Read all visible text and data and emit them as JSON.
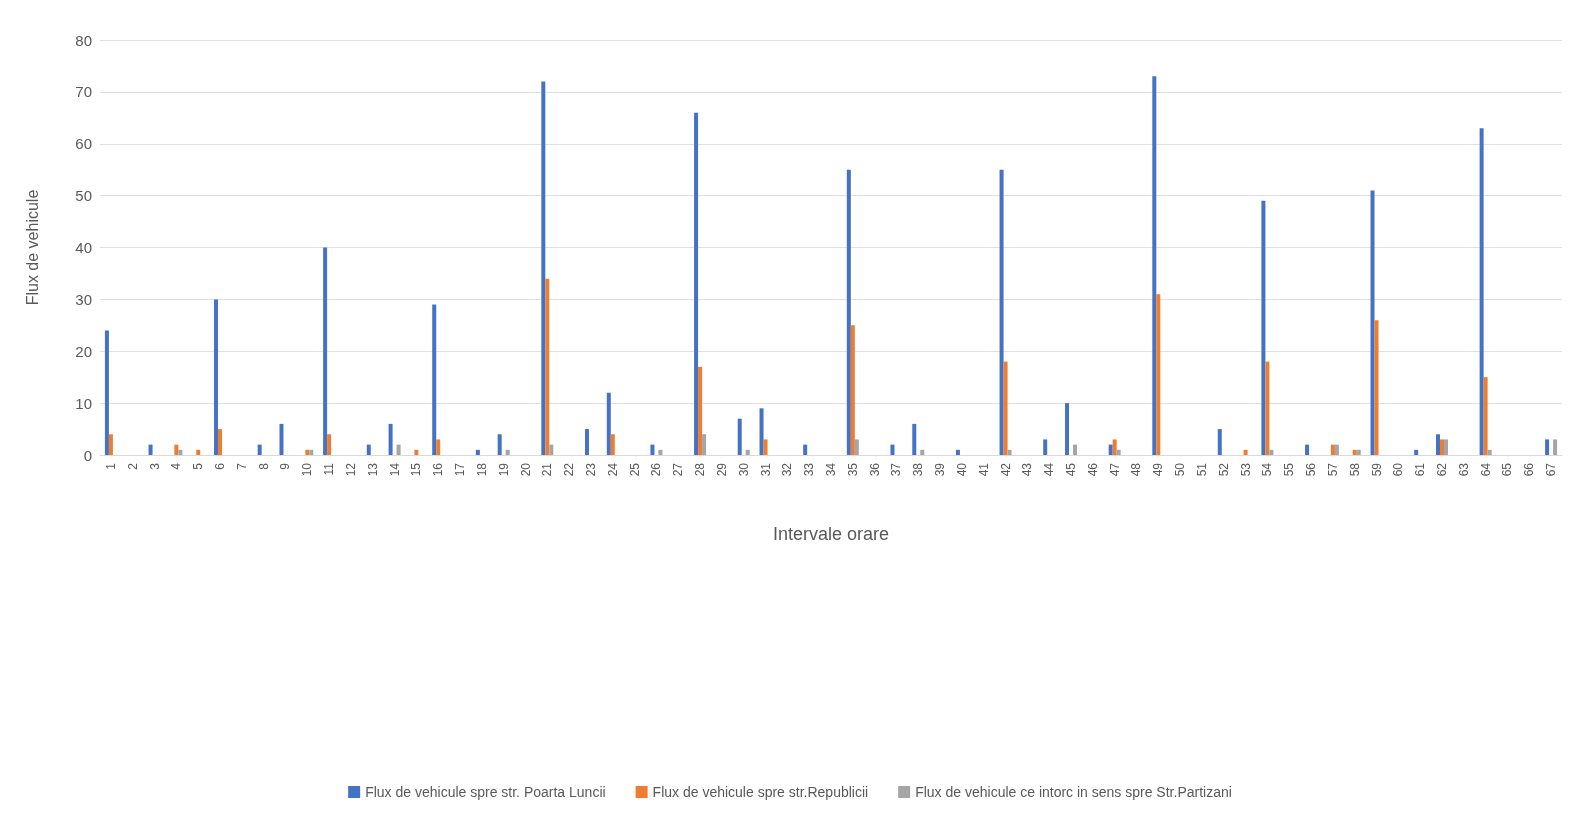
{
  "chart_data": {
    "type": "bar",
    "xlabel": "Intervale orare",
    "ylabel": "Flux de vehicule",
    "categories": [
      "1",
      "2",
      "3",
      "4",
      "5",
      "6",
      "7",
      "8",
      "9",
      "10",
      "11",
      "12",
      "13",
      "14",
      "15",
      "16",
      "17",
      "18",
      "19",
      "20",
      "21",
      "22",
      "23",
      "24",
      "25",
      "26",
      "27",
      "28",
      "29",
      "30",
      "31",
      "32",
      "33",
      "34",
      "35",
      "36",
      "37",
      "38",
      "39",
      "40",
      "41",
      "42",
      "43",
      "44",
      "45",
      "46",
      "47",
      "48",
      "49",
      "50",
      "51",
      "52",
      "53",
      "54",
      "55",
      "56",
      "57",
      "58",
      "59",
      "60",
      "61",
      "62",
      "63",
      "64",
      "65",
      "66",
      "67"
    ],
    "series": [
      {
        "name": "Flux de vehicule spre str. Poarta Luncii",
        "color": "#4472c4",
        "values": [
          24,
          0,
          2,
          0,
          0,
          30,
          0,
          2,
          6,
          0,
          40,
          0,
          2,
          6,
          0,
          29,
          0,
          1,
          4,
          0,
          72,
          0,
          5,
          12,
          0,
          2,
          0,
          66,
          0,
          7,
          9,
          0,
          2,
          0,
          55,
          0,
          2,
          6,
          0,
          1,
          0,
          55,
          0,
          3,
          10,
          0,
          2,
          0,
          73,
          0,
          0,
          5,
          0,
          49,
          0,
          2,
          0,
          0,
          51,
          0,
          1,
          4,
          0,
          63,
          0,
          0,
          3
        ]
      },
      {
        "name": "Flux de vehicule spre str.Republicii",
        "color": "#ed7d31",
        "values": [
          4,
          0,
          0,
          2,
          1,
          5,
          0,
          0,
          0,
          1,
          4,
          0,
          0,
          0,
          1,
          3,
          0,
          0,
          0,
          0,
          34,
          0,
          0,
          4,
          0,
          0,
          0,
          17,
          0,
          0,
          3,
          0,
          0,
          0,
          25,
          0,
          0,
          0,
          0,
          0,
          0,
          18,
          0,
          0,
          0,
          0,
          3,
          0,
          31,
          0,
          0,
          0,
          1,
          18,
          0,
          0,
          2,
          1,
          26,
          0,
          0,
          3,
          0,
          15,
          0,
          0,
          0
        ]
      },
      {
        "name": "Flux de vehicule ce intorc in sens spre Str.Partizani",
        "color": "#a5a5a5",
        "values": [
          0,
          0,
          0,
          1,
          0,
          0,
          0,
          0,
          0,
          1,
          0,
          0,
          0,
          2,
          0,
          0,
          0,
          0,
          1,
          0,
          2,
          0,
          0,
          0,
          0,
          1,
          0,
          4,
          0,
          1,
          0,
          0,
          0,
          0,
          3,
          0,
          0,
          1,
          0,
          0,
          0,
          1,
          0,
          0,
          2,
          0,
          1,
          0,
          0,
          0,
          0,
          0,
          0,
          1,
          0,
          0,
          2,
          1,
          0,
          0,
          0,
          3,
          0,
          1,
          0,
          0,
          3
        ]
      }
    ],
    "ylim": [
      0,
      80
    ],
    "yticks": [
      0,
      10,
      20,
      30,
      40,
      50,
      60,
      70,
      80
    ],
    "grid": "y",
    "legend": "bottom"
  }
}
